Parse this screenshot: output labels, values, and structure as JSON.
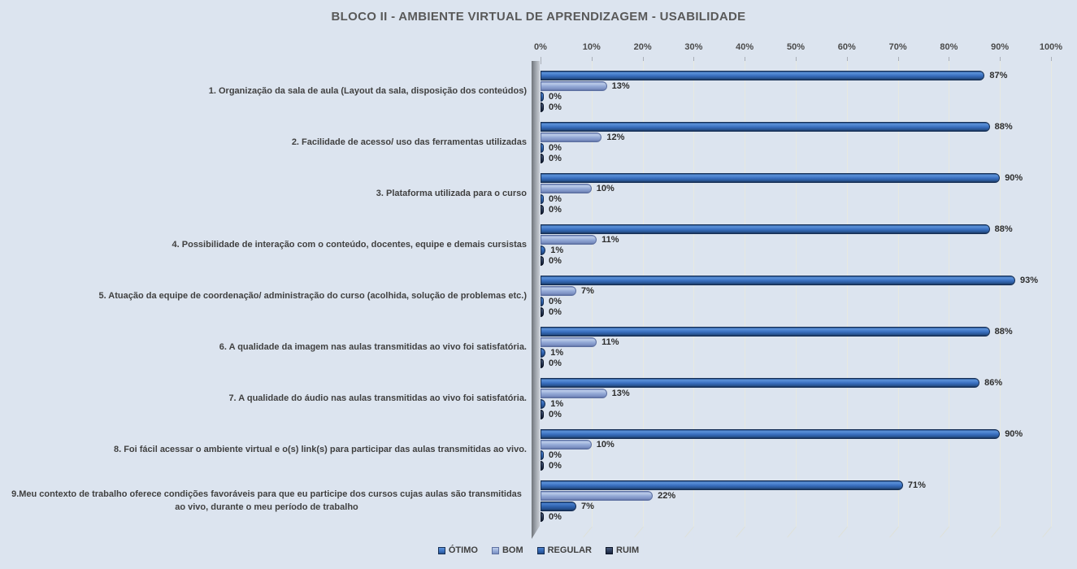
{
  "title": "BLOCO II - AMBIENTE VIRTUAL DE APRENDIZAGEM - USABILIDADE",
  "colors": {
    "background": "#dce4ef",
    "gridline": "#e7e9e1",
    "title_text": "#595959",
    "axis_text": "#4a4a4a",
    "category_text": "#404040",
    "data_label_text": "#2d2d2d",
    "wall_gray": "#9aa0a8"
  },
  "chart_data": {
    "type": "bar",
    "orientation": "horizontal",
    "title": "BLOCO II - AMBIENTE VIRTUAL DE APRENDIZAGEM - USABILIDADE",
    "x_axis": {
      "position": "top",
      "min": 0,
      "max": 100,
      "step": 10,
      "tick_labels": [
        "0%",
        "10%",
        "20%",
        "30%",
        "40%",
        "50%",
        "60%",
        "70%",
        "80%",
        "90%",
        "100%"
      ]
    },
    "gridlines": true,
    "data_labels": true,
    "legend": {
      "position": "bottom"
    },
    "categories": [
      "1. Organização da sala de aula (Layout da sala, disposição dos conteúdos)",
      "2. Facilidade de acesso/ uso das ferramentas utilizadas",
      "3. Plataforma utilizada para o curso",
      "4. Possibilidade de interação com o conteúdo, docentes, equipe e demais cursistas",
      "5. Atuação da equipe de coordenação/ administração do curso (acolhida, solução de problemas etc.)",
      "6. A qualidade da imagem nas aulas transmitidas ao vivo foi satisfatória.",
      "7. A qualidade do áudio nas aulas transmitidas ao vivo foi satisfatória.",
      "8. Foi fácil acessar o ambiente virtual e o(s) link(s) para participar das aulas transmitidas ao vivo.",
      "9.Meu contexto de trabalho oferece condições favoráveis para que eu participe dos cursos cujas aulas são transmitidas ao vivo, durante o meu período de trabalho"
    ],
    "series": [
      {
        "name": "ÓTIMO",
        "values": [
          87,
          88,
          90,
          88,
          93,
          88,
          86,
          90,
          71
        ],
        "palette": {
          "hi": "#5d93da",
          "mid": "#3a70c0",
          "deep": "#27528f",
          "edge": "#173055"
        }
      },
      {
        "name": "BOM",
        "values": [
          13,
          12,
          10,
          11,
          7,
          11,
          13,
          10,
          22
        ],
        "palette": {
          "hi": "#bdcdea",
          "mid": "#93a9d6",
          "deep": "#7a8ec1",
          "edge": "#5d70a1"
        }
      },
      {
        "name": "REGULAR",
        "values": [
          0,
          0,
          0,
          1,
          0,
          1,
          1,
          0,
          7
        ],
        "palette": {
          "hi": "#4a80cc",
          "mid": "#2f62ae",
          "deep": "#224b87",
          "edge": "#142c52"
        }
      },
      {
        "name": "RUIM",
        "values": [
          0,
          0,
          0,
          0,
          0,
          0,
          0,
          0,
          0
        ],
        "palette": {
          "hi": "#47587a",
          "mid": "#2b3a58",
          "deep": "#17233c",
          "edge": "#0c1526"
        }
      }
    ]
  }
}
